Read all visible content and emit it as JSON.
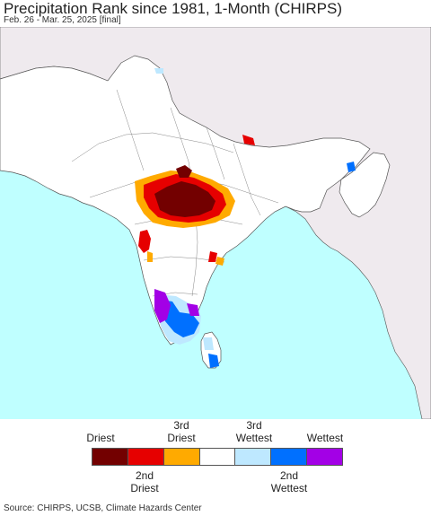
{
  "header": {
    "title": "Precipitation Rank since 1981, 1-Month (CHIRPS)",
    "subtitle": "Feb. 26 - Mar. 25, 2025 [final]"
  },
  "map": {
    "ocean_color": "#bfffff",
    "land_color": "#ffffff",
    "outside_color": "#efeaee",
    "border_color": "#555555"
  },
  "legend": {
    "top_labels": [
      "Driest",
      "3rd\nDriest",
      "3rd\nWettest",
      "Wettest"
    ],
    "bottom_labels": [
      "2nd\nDriest",
      "2nd\nWettest"
    ],
    "categories": [
      {
        "color": "#730000"
      },
      {
        "color": "#e60000"
      },
      {
        "color": "#ffaa00"
      },
      {
        "color": "#ffffff"
      },
      {
        "color": "#bee8ff"
      },
      {
        "color": "#0070ff"
      },
      {
        "color": "#a300e6"
      }
    ]
  },
  "footer": {
    "source": "Source: CHIRPS, UCSB, Climate Hazards Center"
  }
}
